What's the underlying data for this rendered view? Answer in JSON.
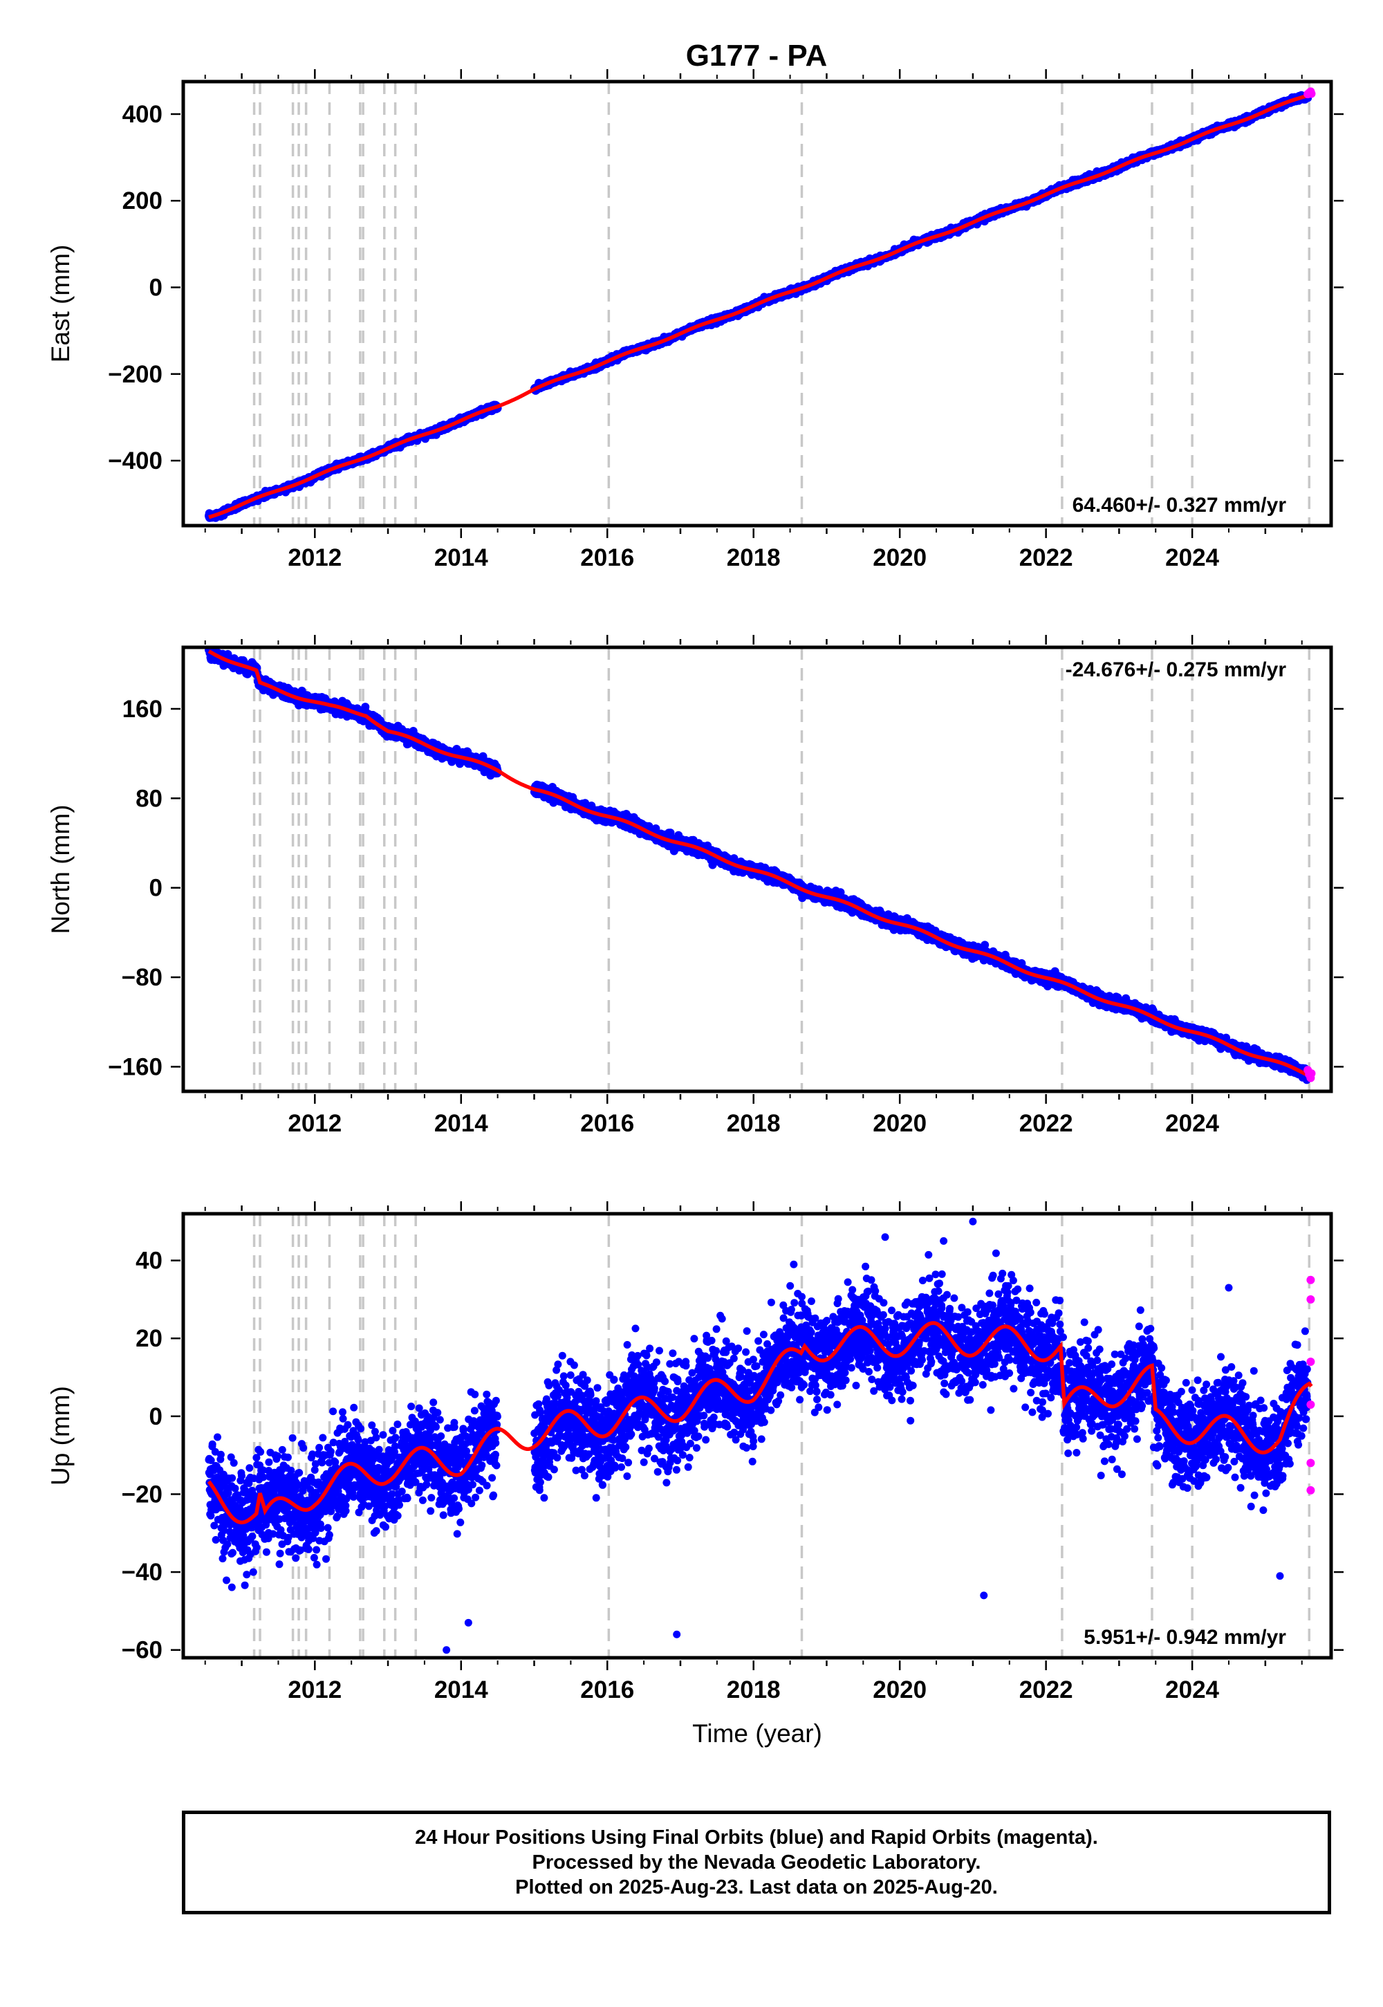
{
  "title": "G177 - PA",
  "footer": {
    "line1": "24 Hour Positions Using Final Orbits (blue) and Rapid Orbits (magenta).",
    "line2": "Processed by the Nevada Geodetic Laboratory.",
    "line3": "Plotted on 2025-Aug-23. Last data on 2025-Aug-20."
  },
  "colors": {
    "final": "#0000ff",
    "rapid": "#ff00ff",
    "model": "#ff0000",
    "breaks": "#c8c8c8"
  },
  "chart_data": [
    {
      "type": "scatter",
      "ylabel": "East (mm)",
      "xlabel": "",
      "xlim": [
        2010.2,
        2025.9
      ],
      "ylim": [
        -550,
        475
      ],
      "xticks": [
        "2012",
        "2014",
        "2016",
        "2018",
        "2020",
        "2022",
        "2024"
      ],
      "yticks": [
        "400",
        "200",
        "0",
        "−200",
        "−400"
      ],
      "rate_label": "64.460+/- 0.327 mm/yr",
      "rate_position": "bottom-right",
      "data_start": 2010.55,
      "data_end": 2025.63,
      "gap": [
        2014.5,
        2015.0
      ],
      "start_value": -530,
      "rate": 64.46,
      "noise": 3,
      "series": [
        {
          "name": "Final Orbits",
          "color": "#0000ff"
        },
        {
          "name": "Rapid Orbits",
          "color": "#ff00ff",
          "x": [
            2025.58,
            2025.6,
            2025.62,
            2025.63
          ],
          "y": [
            446,
            449,
            452,
            447
          ]
        }
      ],
      "model_x": [
        2010.55,
        2014.5,
        2015.0,
        2025.63
      ],
      "model_y": [
        -530,
        -275,
        -235,
        447
      ]
    },
    {
      "type": "scatter",
      "ylabel": "North (mm)",
      "xlabel": "",
      "xlim": [
        2010.2,
        2025.9
      ],
      "ylim": [
        -182,
        215
      ],
      "xticks": [
        "2012",
        "2014",
        "2016",
        "2018",
        "2020",
        "2022",
        "2024"
      ],
      "yticks": [
        "160",
        "80",
        "0",
        "−80",
        "−160"
      ],
      "rate_label": "-24.676+/- 0.275 mm/yr",
      "rate_position": "top-right",
      "data_start": 2010.55,
      "data_end": 2025.63,
      "gap": [
        2014.5,
        2015.0
      ],
      "start_value": 212,
      "rate": -24.676,
      "noise": 2.5,
      "series": [
        {
          "name": "Final Orbits",
          "color": "#0000ff"
        },
        {
          "name": "Rapid Orbits",
          "color": "#ff00ff",
          "x": [
            2025.58,
            2025.6,
            2025.62,
            2025.63
          ],
          "y": [
            -163,
            -167,
            -170,
            -166
          ]
        }
      ],
      "model_x": [
        2010.55,
        2011.2,
        2011.25,
        2012.2,
        2012.7,
        2013.0,
        2014.5,
        2015.0,
        2025.63
      ],
      "model_y": [
        212,
        193,
        182,
        162,
        155,
        140,
        105,
        88,
        -168
      ]
    },
    {
      "type": "scatter",
      "ylabel": "Up (mm)",
      "xlabel": "Time (year)",
      "xlim": [
        2010.2,
        2025.9
      ],
      "ylim": [
        -62,
        52
      ],
      "xticks": [
        "2012",
        "2014",
        "2016",
        "2018",
        "2020",
        "2022",
        "2024"
      ],
      "yticks": [
        "40",
        "20",
        "0",
        "−20",
        "−40",
        "−60"
      ],
      "rate_label": "5.951+/- 0.942 mm/yr",
      "rate_position": "bottom-right",
      "data_start": 2010.55,
      "data_end": 2025.63,
      "gap": [
        2014.5,
        2015.0
      ],
      "noise": 6,
      "series": [
        {
          "name": "Final Orbits",
          "color": "#0000ff",
          "outliers_x": [
            2013.8,
            2014.1,
            2016.95,
            2021.15,
            2025.2,
            2019.8,
            2020.6,
            2021.0,
            2024.5,
            2018.55
          ],
          "outliers_y": [
            -60,
            -53,
            -56,
            -46,
            -41,
            46,
            45,
            50,
            33,
            39
          ]
        },
        {
          "name": "Rapid Orbits",
          "color": "#ff00ff",
          "x": [
            2025.62,
            2025.62,
            2025.62,
            2025.62,
            2025.62,
            2025.62
          ],
          "y": [
            35,
            30,
            14,
            3,
            -12,
            -19
          ]
        }
      ],
      "model_x": [
        2010.55,
        2011.2,
        2011.25,
        2011.32,
        2012.0,
        2013.0,
        2014.0,
        2014.5,
        2015.0,
        2016.0,
        2017.0,
        2018.0,
        2018.65,
        2018.7,
        2019.5,
        2020.5,
        2021.5,
        2022.2,
        2022.25,
        2023.0,
        2023.45,
        2023.5,
        2024.5,
        2025.2,
        2025.6
      ],
      "model_y": [
        -20,
        -25,
        -21,
        -27,
        -19,
        -13,
        -11,
        -7,
        -4,
        -1,
        3,
        8,
        15,
        18,
        19,
        20,
        19,
        18,
        2,
        7,
        9,
        -2,
        -4,
        -6,
        6
      ],
      "seasonal_amplitude": 4
    }
  ],
  "break_years": [
    2011.17,
    2011.25,
    2011.7,
    2011.78,
    2011.88,
    2012.2,
    2012.62,
    2012.66,
    2012.95,
    2013.1,
    2013.38,
    2016.02,
    2018.66,
    2022.22,
    2023.45,
    2024.0,
    2025.6
  ]
}
